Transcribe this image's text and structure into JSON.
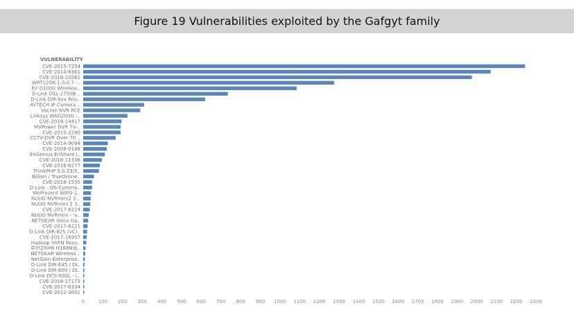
{
  "header": {
    "title": "Figure 19 Vulnerabilities exploited by the Gafgyt family"
  },
  "colors": {
    "bar": "#5b87b8",
    "axis_text": "#8a8a8a",
    "label_text": "#6e6e6e",
    "header_bg": "#d3d3d3"
  },
  "chart_data": {
    "type": "bar",
    "orientation": "horizontal",
    "title": "Figure 19 Vulnerabilities exploited by the Gafgyt family",
    "ylabel": "VULNERABILITY",
    "xlabel": "",
    "xlim": [
      0,
      2300
    ],
    "xticks": [
      0,
      100,
      200,
      300,
      400,
      500,
      600,
      700,
      800,
      900,
      1000,
      1100,
      1200,
      1300,
      1400,
      1500,
      1600,
      1700,
      1800,
      1900,
      2000,
      2100,
      2200,
      2300
    ],
    "grid": false,
    "categories": [
      "CVE-2015-7254",
      "CVE-2014-8361",
      "CVE-2018-10561",
      "WRT120N 1.0.0.7 -..",
      "Eir D1000 Wireless..",
      "D-Link DSL-2750B ..",
      "D-Link DIR-8xx Rou..",
      "AVTECH IP Camera ..",
      "Vacron NVR RCE",
      "Linksys WAG200G -..",
      "CVE-2018-14417",
      "MVPower DVR TV-..",
      "CVE-2015-2280",
      "CCTV-DVR Over 70 ..",
      "CVE-2014-9094",
      "CVE-2008-0148",
      "EnGenius EnShare I..",
      "CVE-2018-11336",
      "CVE-2016-6277",
      "ThinkPHP 5.0.23/5..",
      "Billion / TrueOnline..",
      "CVE-2016-1555",
      "D-Link - OS-Comma..",
      "WePresent WiPG-1..",
      "NUUO NVRmini2 3...",
      "NUUO NVRmini 2 3..",
      "CVE-2017-8224",
      "NUUO NVRmini - 'u..",
      "NETGEAR Voice Ga..",
      "CVE-2017-8221",
      "D-Link DIR-825 (vC)..",
      "CVE-2017-16957",
      "Hadoop YARN Reso..",
      "中兴ZXHN H168N光..",
      "NETGEAR Wireless ..",
      "NetGain Enterprise..",
      "D-Link DIR-645 / DI..",
      "D-Link DIR-600 / DI..",
      "D-Link DCS-930L - (..",
      "CVE-2018-17173",
      "CVE-2017-6334",
      "CVE-2012-3001"
    ],
    "values": [
      2245,
      2070,
      1975,
      1275,
      1085,
      735,
      620,
      310,
      290,
      225,
      195,
      190,
      190,
      165,
      125,
      120,
      110,
      95,
      85,
      80,
      55,
      45,
      45,
      40,
      38,
      36,
      33,
      28,
      25,
      22,
      20,
      18,
      16,
      12,
      10,
      8,
      7,
      6,
      5,
      4,
      3,
      2
    ]
  }
}
